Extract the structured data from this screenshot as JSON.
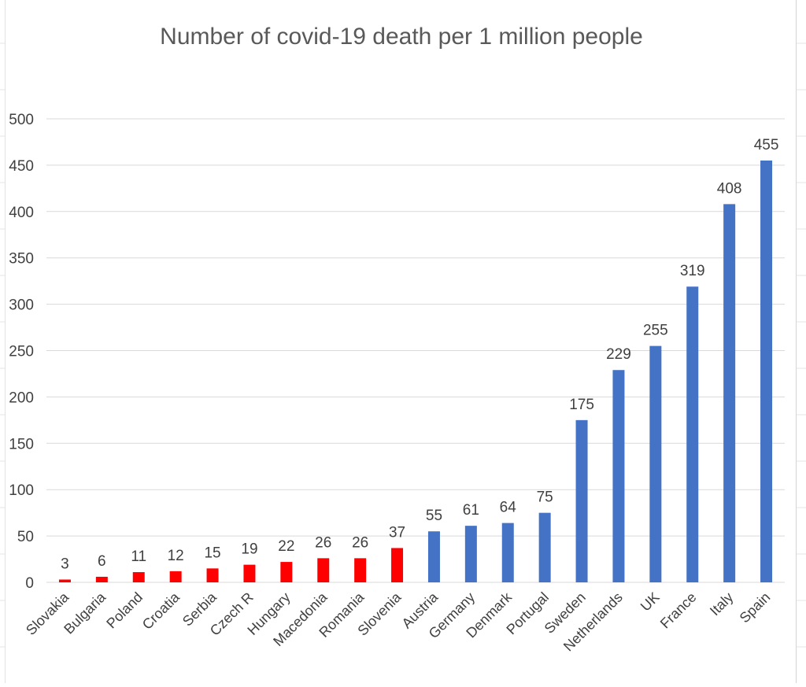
{
  "chart_data": {
    "type": "bar",
    "title": "Number of covid-19 death per 1 million people",
    "xlabel": "",
    "ylabel": "",
    "ylim": [
      0,
      500
    ],
    "yticks": [
      0,
      50,
      100,
      150,
      200,
      250,
      300,
      350,
      400,
      450,
      500
    ],
    "grid": true,
    "legend": "none",
    "categories": [
      "Slovakia",
      "Bulgaria",
      "Poland",
      "Croatia",
      "Serbia",
      "Czech R",
      "Hungary",
      "Macedonia",
      "Romania",
      "Slovenia",
      "Austria",
      "Germany",
      "Denmark",
      "Portugal",
      "Sweden",
      "Netherlands",
      "UK",
      "France",
      "Italy",
      "Spain"
    ],
    "values": [
      3,
      6,
      11,
      12,
      15,
      19,
      22,
      26,
      26,
      37,
      55,
      61,
      64,
      75,
      175,
      229,
      255,
      319,
      408,
      455
    ],
    "bar_colors": [
      "#ff0000",
      "#ff0000",
      "#ff0000",
      "#ff0000",
      "#ff0000",
      "#ff0000",
      "#ff0000",
      "#ff0000",
      "#ff0000",
      "#ff0000",
      "#4472c4",
      "#4472c4",
      "#4472c4",
      "#4472c4",
      "#4472c4",
      "#4472c4",
      "#4472c4",
      "#4472c4",
      "#4472c4",
      "#4472c4"
    ],
    "colors": {
      "group_a": "#ff0000",
      "group_b": "#4472c4"
    }
  }
}
